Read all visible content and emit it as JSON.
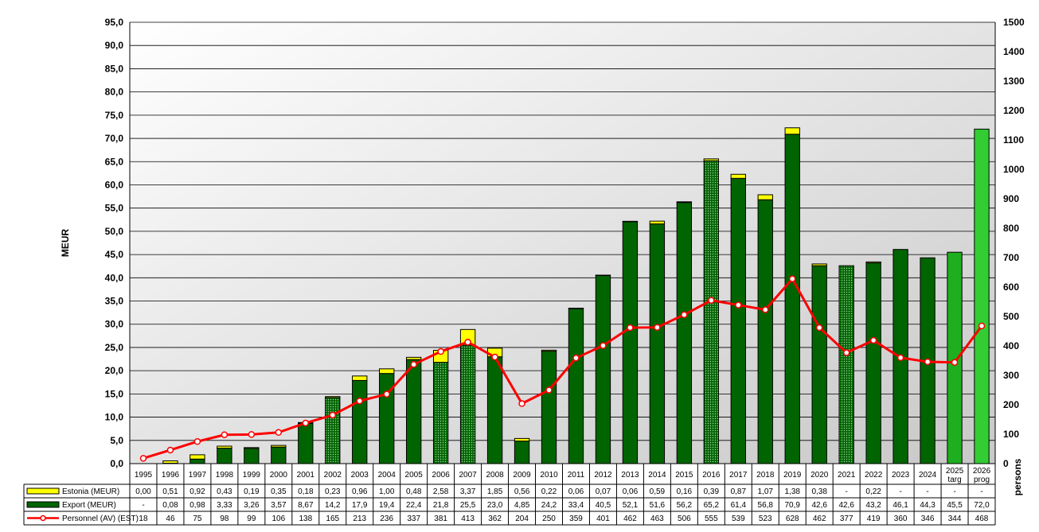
{
  "chart_data": {
    "type": "bar",
    "ylabel": "MEUR",
    "y2label": "persons",
    "ylim": [
      0,
      95
    ],
    "ystep": 5,
    "y2lim": [
      0,
      1500
    ],
    "y2step": 100,
    "grid": true,
    "categories": [
      "1995",
      "1996",
      "1997",
      "1998",
      "1999",
      "2000",
      "2001",
      "2002",
      "2003",
      "2004",
      "2005",
      "2006",
      "2007",
      "2008",
      "2009",
      "2010",
      "2011",
      "2012",
      "2013",
      "2014",
      "2015",
      "2016",
      "2017",
      "2018",
      "2019",
      "2020",
      "2021",
      "2022",
      "2023",
      "2024",
      "2025\ntarg",
      "2026\nprog"
    ],
    "bar_styles": [
      "solid",
      "solid",
      "solid",
      "solid",
      "solid",
      "solid",
      "solid",
      "dotted",
      "solid",
      "solid",
      "solid",
      "dotted",
      "dotted",
      "solid",
      "solid",
      "solid",
      "solid",
      "solid",
      "solid",
      "solid",
      "solid",
      "dotted",
      "solid",
      "solid",
      "solid",
      "solid",
      "dotted",
      "solid",
      "solid",
      "solid",
      "target",
      "prognosis"
    ],
    "colors": {
      "estonia": "#ffff00",
      "export": "#006400",
      "target": "#1fae1f",
      "prognosis": "#33cc33",
      "personnel": "#ff0000"
    },
    "series": [
      {
        "name": "Estonia (MEUR)",
        "values": [
          0.0,
          0.51,
          0.92,
          0.43,
          0.19,
          0.35,
          0.18,
          0.23,
          0.96,
          1.0,
          0.48,
          2.58,
          3.37,
          1.85,
          0.56,
          0.22,
          0.06,
          0.07,
          0.06,
          0.59,
          0.16,
          0.39,
          0.87,
          1.07,
          1.38,
          0.38,
          null,
          0.22,
          null,
          null,
          null,
          null
        ],
        "labels": [
          "0,00",
          "0,51",
          "0,92",
          "0,43",
          "0,19",
          "0,35",
          "0,18",
          "0,23",
          "0,96",
          "1,00",
          "0,48",
          "2,58",
          "3,37",
          "1,85",
          "0,56",
          "0,22",
          "0,06",
          "0,07",
          "0,06",
          "0,59",
          "0,16",
          "0,39",
          "0,87",
          "1,07",
          "1,38",
          "0,38",
          "-",
          "0,22",
          "-",
          "-",
          "-",
          "-"
        ]
      },
      {
        "name": "Export (MEUR)",
        "values": [
          null,
          0.08,
          0.98,
          3.33,
          3.26,
          3.57,
          8.67,
          14.2,
          17.9,
          19.4,
          22.4,
          21.8,
          25.5,
          23.0,
          4.85,
          24.2,
          33.4,
          40.5,
          52.1,
          51.6,
          56.2,
          65.2,
          61.4,
          56.8,
          70.9,
          42.6,
          42.6,
          43.2,
          46.1,
          44.3,
          45.5,
          72.0
        ],
        "labels": [
          "-",
          "0,08",
          "0,98",
          "3,33",
          "3,26",
          "3,57",
          "8,67",
          "14,2",
          "17,9",
          "19,4",
          "22,4",
          "21,8",
          "25,5",
          "23,0",
          "4,85",
          "24,2",
          "33,4",
          "40,5",
          "52,1",
          "51,6",
          "56,2",
          "65,2",
          "61,4",
          "56,8",
          "70,9",
          "42,6",
          "42,6",
          "43,2",
          "46,1",
          "44,3",
          "45,5",
          "72,0"
        ]
      },
      {
        "name": "Personnel (AV) (EST)",
        "axis": "right",
        "values": [
          18,
          46,
          75,
          98,
          99,
          106,
          138,
          165,
          213,
          236,
          337,
          381,
          413,
          362,
          204,
          250,
          359,
          401,
          462,
          463,
          506,
          555,
          539,
          523,
          628,
          462,
          377,
          419,
          360,
          346,
          344,
          468
        ],
        "labels": [
          "18",
          "46",
          "75",
          "98",
          "99",
          "106",
          "138",
          "165",
          "213",
          "236",
          "337",
          "381",
          "413",
          "362",
          "204",
          "250",
          "359",
          "401",
          "462",
          "463",
          "506",
          "555",
          "539",
          "523",
          "628",
          "462",
          "377",
          "419",
          "360",
          "346",
          "344",
          "468"
        ]
      }
    ]
  }
}
